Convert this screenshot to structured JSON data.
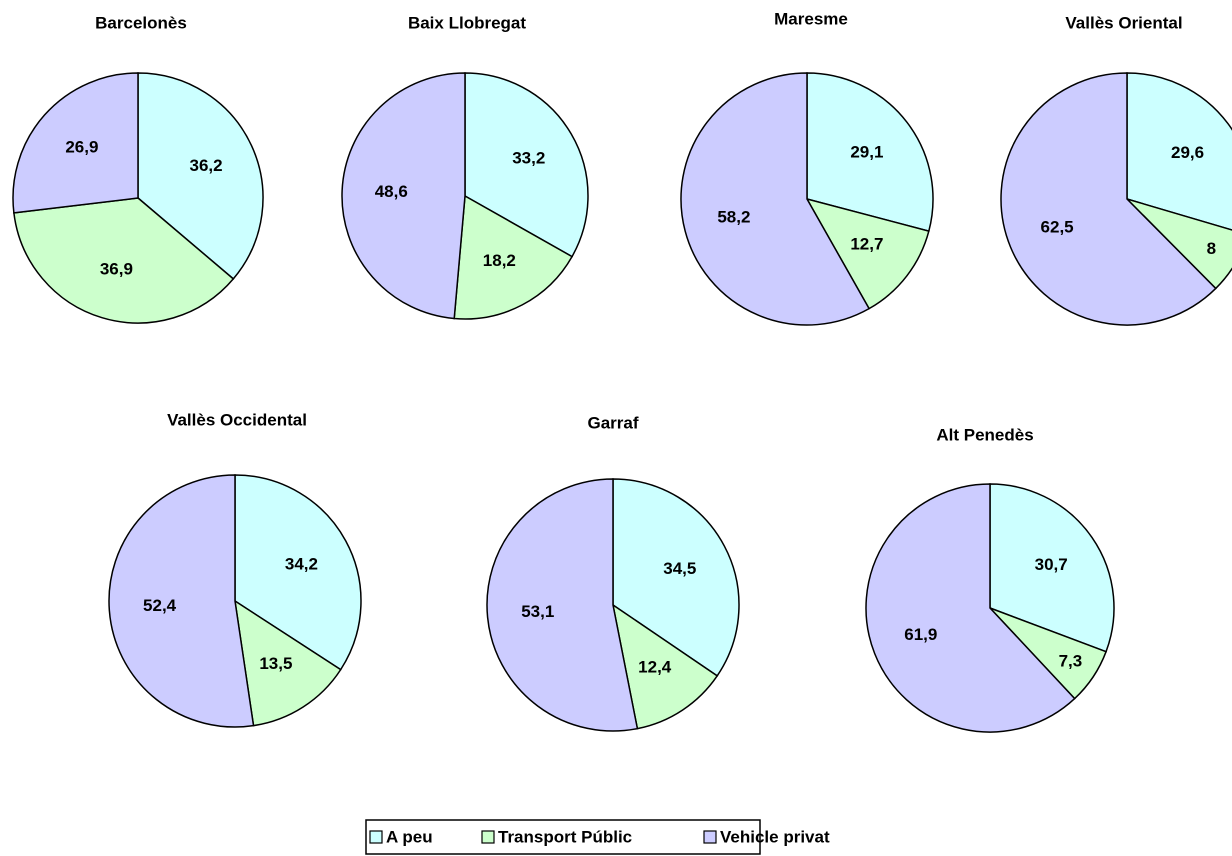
{
  "chart_data": [
    {
      "type": "pie",
      "title": "Barcelonès",
      "categories": [
        "A peu",
        "Transport Públic",
        "Vehicle privat"
      ],
      "values": [
        36.2,
        36.9,
        26.9
      ],
      "value_labels": [
        "36,2",
        "36,9",
        "26,9"
      ],
      "colors": [
        "#ccffff",
        "#ccffcc",
        "#ccccff"
      ]
    },
    {
      "type": "pie",
      "title": "Baix Llobregat",
      "categories": [
        "A peu",
        "Transport Públic",
        "Vehicle privat"
      ],
      "values": [
        33.2,
        18.2,
        48.6
      ],
      "value_labels": [
        "33,2",
        "18,2",
        "48,6"
      ],
      "colors": [
        "#ccffff",
        "#ccffcc",
        "#ccccff"
      ]
    },
    {
      "type": "pie",
      "title": "Maresme",
      "categories": [
        "A peu",
        "Transport Públic",
        "Vehicle privat"
      ],
      "values": [
        29.1,
        12.7,
        58.2
      ],
      "value_labels": [
        "29,1",
        "12,7",
        "58,2"
      ],
      "colors": [
        "#ccffff",
        "#ccffcc",
        "#ccccff"
      ]
    },
    {
      "type": "pie",
      "title": "Vallès Oriental",
      "categories": [
        "A peu",
        "Transport Públic",
        "Vehicle privat"
      ],
      "values": [
        29.6,
        8,
        62.5
      ],
      "value_labels": [
        "29,6",
        "8",
        "62,5"
      ],
      "colors": [
        "#ccffff",
        "#ccffcc",
        "#ccccff"
      ]
    },
    {
      "type": "pie",
      "title": "Vallès Occidental",
      "categories": [
        "A peu",
        "Transport Públic",
        "Vehicle privat"
      ],
      "values": [
        34.2,
        13.5,
        52.4
      ],
      "value_labels": [
        "34,2",
        "13,5",
        "52,4"
      ],
      "colors": [
        "#ccffff",
        "#ccffcc",
        "#ccccff"
      ]
    },
    {
      "type": "pie",
      "title": "Garraf",
      "categories": [
        "A peu",
        "Transport Públic",
        "Vehicle privat"
      ],
      "values": [
        34.5,
        12.4,
        53.1
      ],
      "value_labels": [
        "34,5",
        "12,4",
        "53,1"
      ],
      "colors": [
        "#ccffff",
        "#ccffcc",
        "#ccccff"
      ]
    },
    {
      "type": "pie",
      "title": "Alt Penedès",
      "categories": [
        "A peu",
        "Transport Públic",
        "Vehicle privat"
      ],
      "values": [
        30.7,
        7.3,
        61.9
      ],
      "value_labels": [
        "30,7",
        "7,3",
        "61,9"
      ],
      "colors": [
        "#ccffff",
        "#ccffcc",
        "#ccccff"
      ]
    }
  ]
}
